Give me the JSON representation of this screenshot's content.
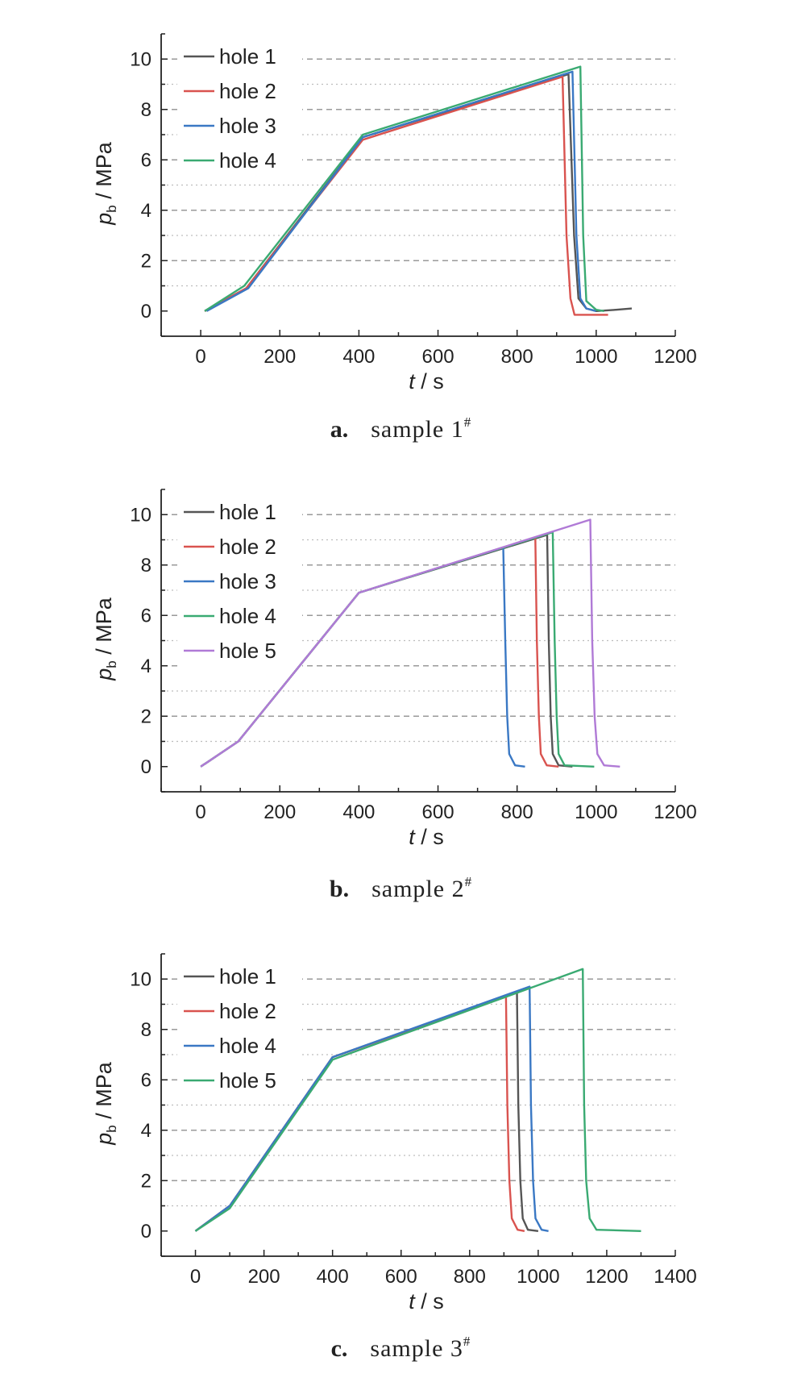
{
  "chart_data": [
    {
      "type": "line",
      "caption": {
        "letter": "a.",
        "text": "sample 1",
        "sup": "#"
      },
      "xlabel": {
        "var": "t",
        "unit": " / s"
      },
      "ylabel": {
        "var": "p",
        "sub": "b",
        "unit": " / MPa"
      },
      "xlim": [
        -100,
        1200
      ],
      "ylim": [
        -1,
        11
      ],
      "xticks": [
        0,
        200,
        400,
        600,
        800,
        1000,
        1200
      ],
      "yticks": [
        0,
        2,
        4,
        6,
        8,
        10
      ],
      "grid": "horizontal dashed",
      "legend": "top-left",
      "series": [
        {
          "name": "hole 1",
          "color": "#555555",
          "x": [
            10,
            115,
            410,
            930,
            944,
            955,
            975,
            1000,
            1050,
            1090
          ],
          "y": [
            0,
            0.9,
            6.9,
            9.4,
            3.0,
            0.5,
            0.1,
            0.0,
            0.05,
            0.1
          ]
        },
        {
          "name": "hole 2",
          "color": "#d9534f",
          "x": [
            10,
            115,
            410,
            915,
            925,
            935,
            945,
            1030
          ],
          "y": [
            0,
            0.9,
            6.8,
            9.3,
            3.0,
            0.5,
            -0.15,
            -0.15
          ]
        },
        {
          "name": "hole 3",
          "color": "#3a78c4",
          "x": [
            15,
            120,
            410,
            940,
            950,
            960,
            975,
            1000
          ],
          "y": [
            0,
            0.9,
            6.9,
            9.5,
            3.0,
            0.5,
            0.1,
            0.0
          ]
        },
        {
          "name": "hole 4",
          "color": "#3aaa72",
          "x": [
            10,
            110,
            410,
            960,
            967,
            975,
            1000,
            1020
          ],
          "y": [
            0,
            1.0,
            7.0,
            9.7,
            3.0,
            0.4,
            0.05,
            0.0
          ]
        }
      ]
    },
    {
      "type": "line",
      "caption": {
        "letter": "b.",
        "text": "sample 2",
        "sup": "#"
      },
      "xlabel": {
        "var": "t",
        "unit": " / s"
      },
      "ylabel": {
        "var": "p",
        "sub": "b",
        "unit": " / MPa"
      },
      "xlim": [
        -100,
        1200
      ],
      "ylim": [
        -1,
        11
      ],
      "xticks": [
        0,
        200,
        400,
        600,
        800,
        1000,
        1200
      ],
      "yticks": [
        0,
        2,
        4,
        6,
        8,
        10
      ],
      "grid": "horizontal dashed",
      "legend": "top-left",
      "series": [
        {
          "name": "hole 1",
          "color": "#555555",
          "x": [
            0,
            95,
            400,
            876,
            880,
            885,
            890,
            905,
            940
          ],
          "y": [
            0,
            1.0,
            6.9,
            9.2,
            5.0,
            2.0,
            0.5,
            0.05,
            0.0
          ]
        },
        {
          "name": "hole 2",
          "color": "#d9534f",
          "x": [
            0,
            95,
            400,
            846,
            850,
            855,
            860,
            875,
            905
          ],
          "y": [
            0,
            1.0,
            6.9,
            9.1,
            5.0,
            2.0,
            0.5,
            0.05,
            0.0
          ]
        },
        {
          "name": "hole 3",
          "color": "#3a78c4",
          "x": [
            0,
            95,
            400,
            765,
            770,
            775,
            780,
            795,
            820
          ],
          "y": [
            0,
            1.0,
            6.9,
            8.7,
            5.0,
            2.0,
            0.5,
            0.05,
            0.0
          ]
        },
        {
          "name": "hole 4",
          "color": "#3aaa72",
          "x": [
            0,
            95,
            400,
            890,
            895,
            900,
            905,
            920,
            995
          ],
          "y": [
            0,
            1.0,
            6.9,
            9.3,
            5.0,
            2.0,
            0.5,
            0.05,
            0.0
          ]
        },
        {
          "name": "hole 5",
          "color": "#b07ad6",
          "x": [
            0,
            95,
            400,
            985,
            990,
            996,
            1003,
            1020,
            1060
          ],
          "y": [
            0,
            1.0,
            6.9,
            9.8,
            5.0,
            2.0,
            0.5,
            0.05,
            0.0
          ]
        }
      ]
    },
    {
      "type": "line",
      "caption": {
        "letter": "c.",
        "text": "sample 3",
        "sup": "#"
      },
      "xlabel": {
        "var": "t",
        "unit": " / s"
      },
      "ylabel": {
        "var": "p",
        "sub": "b",
        "unit": " / MPa"
      },
      "xlim": [
        -100,
        1400
      ],
      "ylim": [
        -1,
        11
      ],
      "xticks": [
        0,
        200,
        400,
        600,
        800,
        1000,
        1200,
        1400
      ],
      "yticks": [
        0,
        2,
        4,
        6,
        8,
        10
      ],
      "grid": "horizontal dashed",
      "legend": "top-left",
      "series": [
        {
          "name": "hole 1",
          "color": "#555555",
          "x": [
            0,
            100,
            400,
            938,
            942,
            948,
            955,
            970,
            1000
          ],
          "y": [
            0,
            1.0,
            6.9,
            9.5,
            5.0,
            2.0,
            0.5,
            0.05,
            0.0
          ]
        },
        {
          "name": "hole 2",
          "color": "#d9534f",
          "x": [
            0,
            100,
            400,
            906,
            910,
            916,
            923,
            940,
            960
          ],
          "y": [
            0,
            1.0,
            6.9,
            9.3,
            5.0,
            2.0,
            0.5,
            0.05,
            0.0
          ]
        },
        {
          "name": "hole 4",
          "color": "#3a78c4",
          "x": [
            0,
            100,
            400,
            975,
            979,
            985,
            992,
            1010,
            1030
          ],
          "y": [
            0,
            1.0,
            6.9,
            9.7,
            5.0,
            2.0,
            0.5,
            0.05,
            0.0
          ]
        },
        {
          "name": "hole 5",
          "color": "#3aaa72",
          "x": [
            0,
            100,
            400,
            1130,
            1134,
            1140,
            1150,
            1170,
            1300
          ],
          "y": [
            0,
            0.9,
            6.8,
            10.4,
            5.0,
            2.0,
            0.5,
            0.05,
            0.0
          ]
        }
      ]
    }
  ]
}
